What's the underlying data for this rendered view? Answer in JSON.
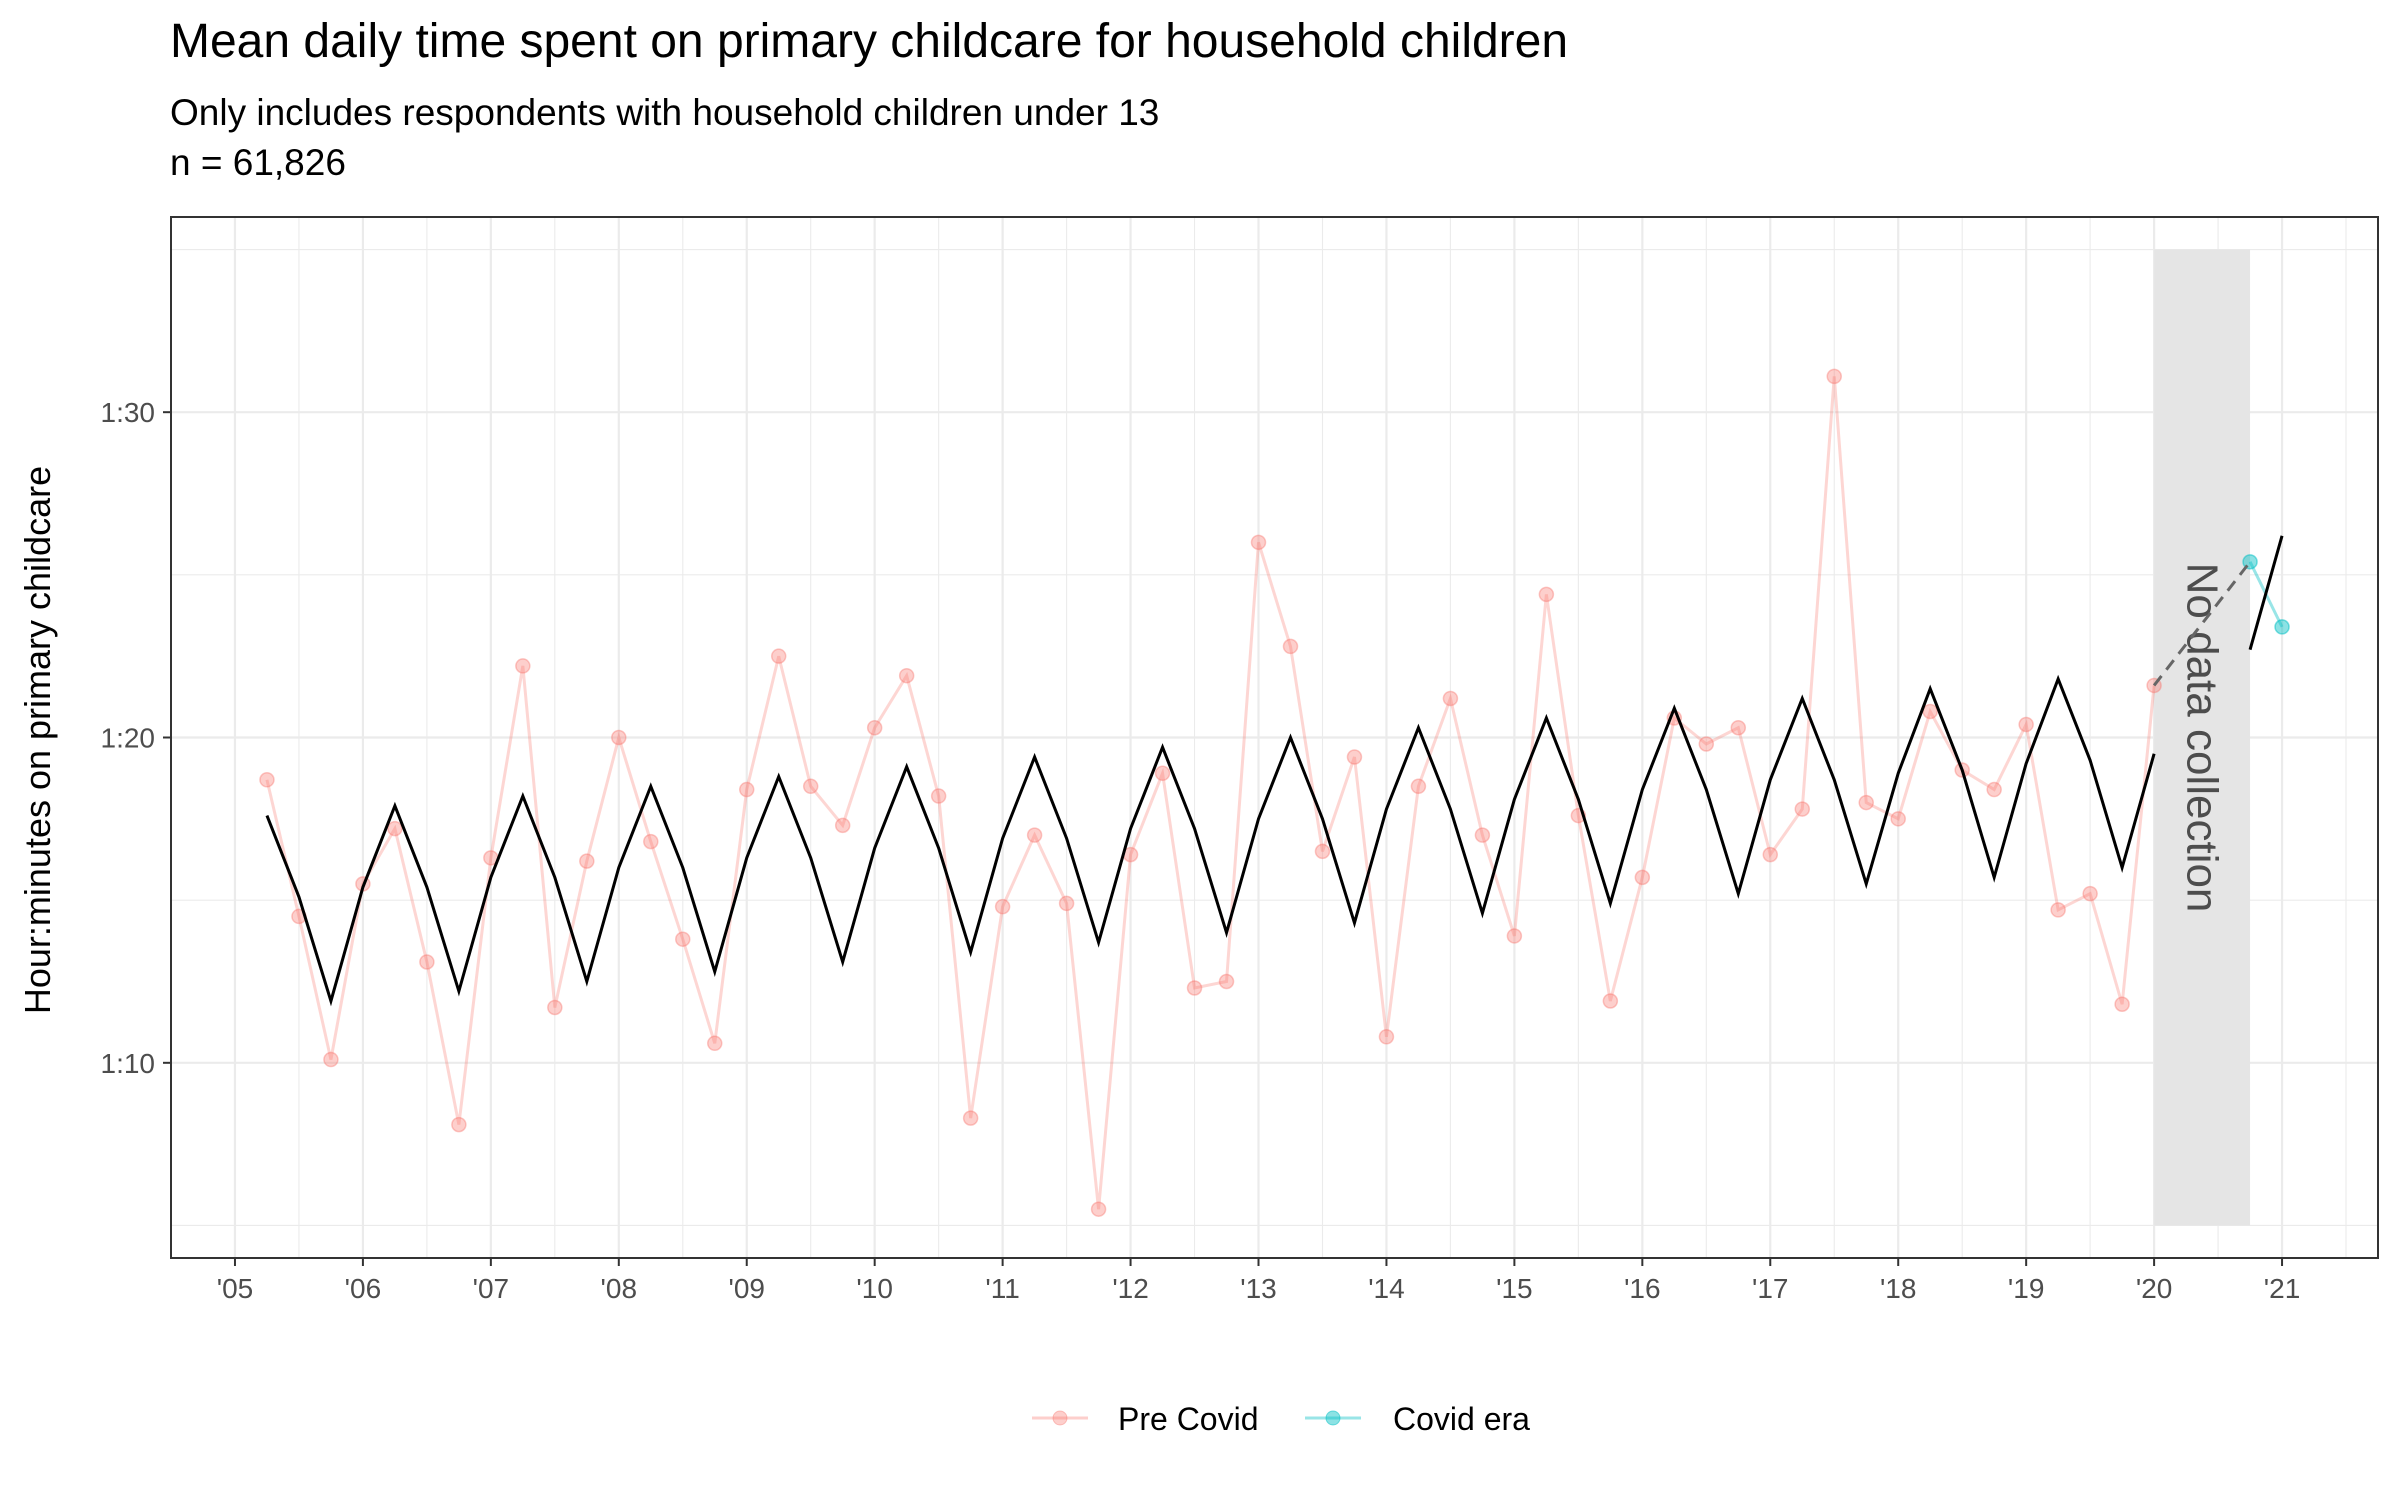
{
  "chart_data": {
    "type": "line",
    "title": "Mean daily time spent on primary childcare for household children",
    "subtitle": "Only includes respondents with household children under 13",
    "subtitle2": "n = 61,826",
    "xlabel": "",
    "ylabel": "Hour:minutes on primary childcare",
    "x_tick_labels": [
      "'05",
      "'06",
      "'07",
      "'08",
      "'09",
      "'10",
      "'11",
      "'12",
      "'13",
      "'14",
      "'15",
      "'16",
      "'17",
      "'18",
      "'19",
      "'20",
      "'21"
    ],
    "x_tick_values": [
      2005,
      2006,
      2007,
      2008,
      2009,
      2010,
      2011,
      2012,
      2013,
      2014,
      2015,
      2016,
      2017,
      2018,
      2019,
      2020,
      2021
    ],
    "y_tick_labels": [
      "1:10",
      "1:20",
      "1:30"
    ],
    "y_tick_values": [
      70,
      80,
      90
    ],
    "xlim": [
      2004.5,
      2021.75
    ],
    "ylim": [
      64,
      96
    ],
    "grid": true,
    "legend_position": "bottom",
    "annotation": {
      "text": "No data collection",
      "x_range": [
        2020.0,
        2020.75
      ],
      "y_range": [
        65,
        95
      ]
    },
    "colors": {
      "pre_covid": "#F8766D",
      "covid_era": "#00BFC4",
      "fitted": "#000000",
      "band": "#E5E5E5"
    },
    "series": [
      {
        "name": "Pre Covid",
        "x": [
          2005.25,
          2005.5,
          2005.75,
          2006.0,
          2006.25,
          2006.5,
          2006.75,
          2007.0,
          2007.25,
          2007.5,
          2007.75,
          2008.0,
          2008.25,
          2008.5,
          2008.75,
          2009.0,
          2009.25,
          2009.5,
          2009.75,
          2010.0,
          2010.25,
          2010.5,
          2010.75,
          2011.0,
          2011.25,
          2011.5,
          2011.75,
          2012.0,
          2012.25,
          2012.5,
          2012.75,
          2013.0,
          2013.25,
          2013.5,
          2013.75,
          2014.0,
          2014.25,
          2014.5,
          2014.75,
          2015.0,
          2015.25,
          2015.5,
          2015.75,
          2016.0,
          2016.25,
          2016.5,
          2016.75,
          2017.0,
          2017.25,
          2017.5,
          2017.75,
          2018.0,
          2018.25,
          2018.5,
          2018.75,
          2019.0,
          2019.25,
          2019.5,
          2019.75,
          2020.0
        ],
        "y": [
          78.7,
          74.5,
          70.1,
          75.5,
          77.2,
          73.1,
          68.1,
          76.3,
          82.2,
          71.7,
          76.2,
          80.0,
          76.8,
          73.8,
          70.6,
          78.4,
          82.5,
          78.5,
          77.3,
          80.3,
          81.9,
          78.2,
          68.3,
          74.8,
          77.0,
          74.9,
          65.5,
          76.4,
          78.9,
          72.3,
          72.5,
          86.0,
          82.8,
          76.5,
          79.4,
          70.8,
          78.5,
          81.2,
          77.0,
          73.9,
          84.4,
          77.6,
          71.9,
          75.7,
          80.6,
          79.8,
          80.3,
          76.4,
          77.8,
          91.1,
          78.0,
          77.5,
          80.8,
          79.0,
          78.4,
          80.4,
          74.7,
          75.2,
          71.8,
          81.6
        ]
      },
      {
        "name": "Covid era",
        "x": [
          2020.75,
          2021.0
        ],
        "y": [
          85.4,
          83.4
        ]
      },
      {
        "name": "",
        "x": [
          2005.25,
          2005.5,
          2005.75,
          2006.0,
          2006.25,
          2006.5,
          2006.75,
          2007.0,
          2007.25,
          2007.5,
          2007.75,
          2008.0,
          2008.25,
          2008.5,
          2008.75,
          2009.0,
          2009.25,
          2009.5,
          2009.75,
          2010.0,
          2010.25,
          2010.5,
          2010.75,
          2011.0,
          2011.25,
          2011.5,
          2011.75,
          2012.0,
          2012.25,
          2012.5,
          2012.75,
          2013.0,
          2013.25,
          2013.5,
          2013.75,
          2014.0,
          2014.25,
          2014.5,
          2014.75,
          2015.0,
          2015.25,
          2015.5,
          2015.75,
          2016.0,
          2016.25,
          2016.5,
          2016.75,
          2017.0,
          2017.25,
          2017.5,
          2017.75,
          2018.0,
          2018.25,
          2018.5,
          2018.75,
          2019.0,
          2019.25,
          2019.5,
          2019.75,
          2020.0
        ],
        "y": [
          77.6,
          75.1,
          71.9,
          75.4,
          77.9,
          75.4,
          72.2,
          75.7,
          78.2,
          75.7,
          72.5,
          76.0,
          78.5,
          76.0,
          72.8,
          76.3,
          78.8,
          76.3,
          73.1,
          76.6,
          79.1,
          76.6,
          73.4,
          76.9,
          79.4,
          76.9,
          73.7,
          77.2,
          79.7,
          77.2,
          74.0,
          77.5,
          80.0,
          77.5,
          74.3,
          77.8,
          80.3,
          77.8,
          74.6,
          78.1,
          80.6,
          78.1,
          74.9,
          78.4,
          80.9,
          78.4,
          75.2,
          78.7,
          81.2,
          78.7,
          75.5,
          78.9,
          81.5,
          79.0,
          75.7,
          79.2,
          81.8,
          79.3,
          76.0,
          79.5
        ]
      },
      {
        "name": "",
        "x": [
          2020.75,
          2021.0
        ],
        "y": [
          82.7,
          86.2
        ]
      }
    ],
    "connector": {
      "x": [
        2020.0,
        2020.75
      ],
      "y": [
        81.6,
        85.4
      ]
    }
  }
}
